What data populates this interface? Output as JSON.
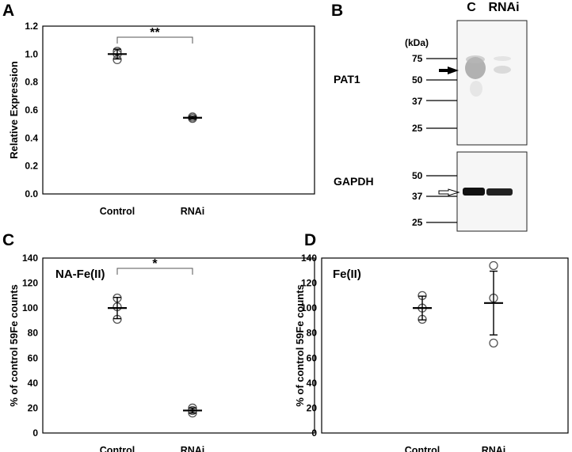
{
  "panels": {
    "A": "A",
    "B": "B",
    "C": "C",
    "D": "D"
  },
  "chart_data": [
    {
      "panel": "A",
      "type": "scatter",
      "title": "",
      "xlabel": "",
      "ylabel": "Relative Expression",
      "categories": [
        "Control",
        "RNAi"
      ],
      "ylim": [
        0.0,
        1.2
      ],
      "yticks": [
        "0.0",
        "0.2",
        "0.4",
        "0.6",
        "0.8",
        "1.0",
        "1.2"
      ],
      "points": [
        [
          1.02,
          0.96,
          1.0
        ],
        [
          0.54,
          0.55,
          0.55
        ]
      ],
      "means": [
        1.0,
        0.545
      ],
      "errors": [
        0.035,
        0.01
      ],
      "significance": "**",
      "in_plot_label": "",
      "grid": false
    },
    {
      "panel": "C",
      "type": "scatter",
      "title": "",
      "xlabel": "",
      "ylabel": "% of control 59Fe counts",
      "categories": [
        "Control",
        "RNAi"
      ],
      "ylim": [
        0,
        140
      ],
      "yticks": [
        "0",
        "20",
        "40",
        "60",
        "80",
        "100",
        "120",
        "140"
      ],
      "points": [
        [
          108,
          91,
          101
        ],
        [
          20,
          16,
          18
        ]
      ],
      "means": [
        100,
        18
      ],
      "errors": [
        8.5,
        2.0
      ],
      "significance": "*",
      "in_plot_label": "NA-Fe(II)",
      "grid": false
    },
    {
      "panel": "D",
      "type": "scatter",
      "title": "",
      "xlabel": "",
      "ylabel": "% of control 59Fe counts",
      "categories": [
        "Control",
        "RNAi"
      ],
      "ylim": [
        0,
        140
      ],
      "yticks": [
        "0",
        "20",
        "40",
        "60",
        "80",
        "100",
        "120",
        "140"
      ],
      "points": [
        [
          110,
          91,
          100
        ],
        [
          134,
          72,
          108
        ]
      ],
      "means": [
        100,
        104
      ],
      "errors": [
        9.5,
        25.5
      ],
      "significance": "",
      "in_plot_label": "Fe(II)",
      "grid": false
    }
  ],
  "blot": {
    "lanes": [
      "C",
      "RNAi"
    ],
    "kda_label": "(kDa)",
    "top": {
      "protein": "PAT1",
      "markers": [
        "75",
        "50",
        "37",
        "25"
      ]
    },
    "bottom": {
      "protein": "GAPDH",
      "markers": [
        "50",
        "37",
        "25"
      ]
    }
  }
}
